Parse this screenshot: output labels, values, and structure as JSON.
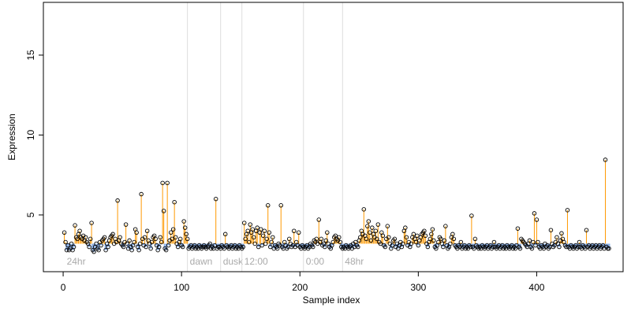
{
  "chart_data": {
    "type": "stem-scatter",
    "x_label": "Sample index",
    "y_label": "Expression",
    "xlim": [
      -16.7,
      473
    ],
    "xticks": [
      0,
      100,
      200,
      300,
      400
    ],
    "ylim": [
      1.45,
      18.3
    ],
    "yticks": [
      5,
      10,
      15
    ],
    "baseline": 3.2,
    "above_color": "#ff9900",
    "below_color": "#8fb3e8",
    "point_color": "#000000",
    "sections": [
      {
        "label": "24hr",
        "start": 1
      },
      {
        "label": "dawn",
        "start": 105
      },
      {
        "label": "dusk",
        "start": 133
      },
      {
        "label": "12:00",
        "start": 151
      },
      {
        "label": "0:00",
        "start": 203
      },
      {
        "label": "48hr",
        "start": 236
      }
    ],
    "values": [
      3.9,
      3.3,
      2.8,
      3.1,
      2.8,
      2.9,
      3.2,
      2.8,
      3.0,
      4.35,
      3.6,
      3.5,
      3.8,
      4.0,
      3.6,
      3.5,
      3.7,
      3.4,
      3.6,
      3.3,
      3.2,
      3.0,
      3.5,
      4.5,
      2.8,
      2.7,
      3.0,
      3.2,
      2.9,
      2.8,
      3.3,
      3.1,
      3.4,
      3.5,
      3.6,
      2.8,
      3.2,
      3.0,
      3.4,
      3.6,
      3.7,
      3.8,
      3.2,
      3.5,
      3.3,
      5.9,
      3.4,
      3.6,
      3.2,
      3.1,
      3.0,
      3.3,
      4.4,
      3.2,
      2.9,
      3.4,
      3.0,
      2.8,
      3.1,
      3.3,
      4.1,
      3.9,
      3.0,
      2.8,
      3.2,
      6.3,
      3.5,
      3.1,
      3.6,
      3.0,
      4.0,
      3.4,
      3.2,
      2.9,
      3.3,
      3.6,
      3.7,
      3.5,
      3.1,
      2.8,
      3.0,
      3.6,
      3.3,
      7.0,
      5.25,
      2.9,
      2.8,
      7.0,
      3.1,
      3.4,
      3.9,
      3.5,
      4.1,
      5.8,
      3.6,
      3.2,
      3.0,
      3.3,
      3.5,
      3.1,
      3.0,
      4.6,
      4.2,
      3.8,
      3.5,
      2.9,
      3.0,
      3.1,
      2.9,
      3.0,
      3.1,
      2.9,
      3.0,
      2.9,
      3.1,
      3.0,
      2.9,
      3.0,
      3.1,
      3.0,
      2.9,
      3.0,
      3.1,
      3.2,
      2.9,
      3.0,
      2.9,
      3.1,
      6.0,
      2.9,
      3.0,
      3.0,
      2.9,
      3.1,
      3.0,
      2.9,
      3.8,
      3.1,
      3.0,
      2.9,
      3.0,
      3.1,
      2.9,
      3.0,
      3.1,
      2.9,
      3.0,
      2.9,
      3.1,
      3.0,
      2.9,
      3.0,
      4.5,
      3.5,
      3.8,
      4.0,
      3.3,
      4.4,
      3.9,
      4.1,
      3.6,
      3.2,
      4.0,
      4.2,
      3.0,
      3.9,
      4.1,
      3.1,
      3.7,
      4.0,
      3.2,
      3.5,
      5.6,
      3.9,
      3.0,
      3.3,
      3.6,
      2.9,
      3.1,
      3.0,
      2.9,
      3.2,
      3.1,
      5.6,
      3.0,
      2.9,
      3.3,
      3.1,
      2.9,
      3.0,
      3.5,
      3.2,
      3.0,
      3.1,
      4.0,
      3.0,
      3.3,
      3.1,
      3.9,
      3.0,
      2.9,
      3.1,
      3.0,
      2.9,
      3.0,
      3.1,
      2.9,
      3.0,
      3.2,
      3.1,
      3.0,
      3.4,
      3.3,
      3.5,
      3.2,
      4.7,
      3.3,
      3.5,
      3.1,
      3.2,
      3.0,
      3.4,
      3.9,
      3.2,
      3.0,
      2.9,
      3.1,
      3.3,
      3.6,
      3.7,
      3.5,
      3.4,
      3.6,
      3.3,
      3.0,
      2.9,
      3.0,
      2.9,
      3.1,
      3.0,
      2.9,
      3.0,
      3.1,
      2.9,
      3.2,
      3.0,
      3.3,
      3.1,
      3.0,
      3.4,
      3.6,
      4.0,
      3.8,
      5.35,
      3.7,
      3.5,
      4.3,
      4.6,
      3.9,
      3.4,
      4.2,
      3.8,
      3.6,
      4.0,
      3.5,
      4.4,
      3.3,
      3.2,
      3.9,
      3.7,
      3.1,
      3.0,
      3.5,
      4.3,
      3.6,
      3.2,
      2.9,
      3.1,
      3.4,
      3.5,
      3.0,
      3.2,
      2.9,
      3.1,
      3.3,
      3.0,
      3.2,
      4.0,
      4.2,
      3.6,
      3.1,
      3.3,
      3.0,
      3.2,
      3.6,
      3.8,
      3.5,
      3.3,
      3.7,
      3.1,
      3.4,
      3.6,
      3.8,
      3.9,
      4.0,
      3.7,
      3.2,
      3.0,
      3.3,
      3.5,
      3.8,
      4.1,
      3.4,
      3.0,
      2.9,
      3.1,
      3.3,
      3.6,
      3.5,
      3.2,
      3.0,
      3.4,
      4.3,
      3.1,
      2.9,
      3.0,
      3.2,
      3.6,
      3.8,
      3.5,
      3.1,
      3.0,
      2.9,
      3.1,
      3.0,
      3.3,
      2.9,
      3.0,
      3.1,
      2.9,
      3.0,
      2.9,
      3.1,
      3.0,
      4.95,
      3.0,
      2.9,
      3.5,
      3.1,
      3.0,
      2.9,
      3.0,
      2.9,
      3.1,
      3.0,
      2.9,
      3.0,
      3.1,
      2.9,
      3.0,
      3.1,
      2.9,
      3.0,
      3.3,
      3.0,
      2.9,
      3.0,
      3.1,
      2.9,
      3.0,
      3.1,
      2.9,
      3.0,
      2.9,
      3.1,
      3.0,
      2.9,
      3.0,
      3.1,
      2.9,
      3.0,
      2.9,
      3.1,
      4.15,
      3.0,
      2.9,
      3.5,
      3.4,
      3.3,
      3.2,
      3.1,
      3.0,
      3.2,
      3.4,
      3.0,
      2.9,
      3.3,
      5.1,
      3.1,
      4.7,
      3.3,
      3.0,
      2.9,
      3.1,
      3.0,
      2.9,
      3.2,
      3.0,
      3.1,
      2.9,
      3.0,
      4.05,
      3.2,
      3.0,
      3.1,
      3.3,
      3.6,
      3.2,
      3.0,
      3.4,
      3.85,
      3.5,
      3.3,
      3.1,
      3.0,
      5.3,
      3.0,
      2.9,
      3.1,
      3.0,
      2.9,
      3.0,
      3.1,
      2.9,
      3.0,
      3.3,
      3.0,
      2.9,
      3.1,
      3.0,
      2.9,
      4.05,
      3.0,
      3.1,
      2.9,
      3.0,
      3.1,
      2.9,
      3.0,
      3.1,
      2.9,
      3.0,
      3.1,
      2.9,
      3.0,
      3.1,
      2.9,
      8.45,
      3.0,
      2.9,
      2.9
    ]
  }
}
